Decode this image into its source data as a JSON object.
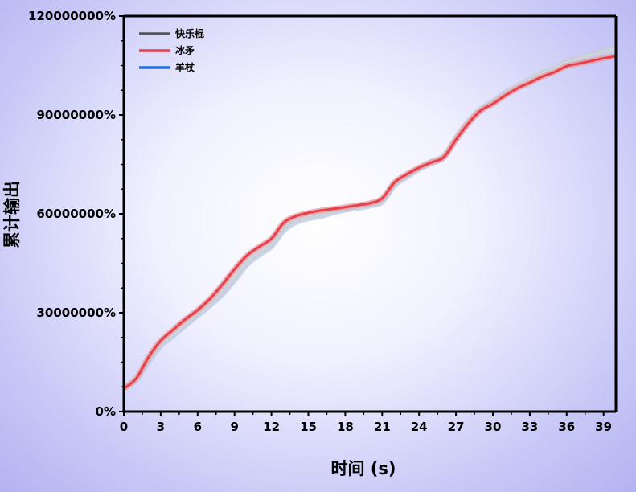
{
  "chart_data": {
    "type": "line",
    "title": "",
    "xlabel": "时间 (s)",
    "ylabel": "累计输出",
    "xlim": [
      0,
      40
    ],
    "ylim": [
      0,
      120000000
    ],
    "xticks": [
      0,
      3,
      6,
      9,
      12,
      15,
      18,
      21,
      24,
      27,
      30,
      33,
      36,
      39
    ],
    "yticks": [
      0,
      30000000,
      60000000,
      90000000,
      120000000
    ],
    "ytick_labels": [
      "0%",
      "30000000%",
      "60000000%",
      "90000000%",
      "120000000%"
    ],
    "legend_position": "top-left",
    "series": [
      {
        "name": "快乐棍",
        "color": "#555555",
        "x": [
          0,
          1,
          2,
          3,
          4,
          5,
          6,
          7,
          8,
          9,
          10,
          11,
          12,
          13,
          14,
          15,
          16,
          17,
          18,
          19,
          20,
          21,
          22,
          23,
          24,
          25,
          26,
          27,
          28,
          29,
          30,
          31,
          32,
          33,
          34,
          35,
          36,
          37,
          38,
          39,
          40
        ],
        "y": [
          7200000,
          9800000,
          15800000,
          20600000,
          23500000,
          26700000,
          29800000,
          33000000,
          36500000,
          41000000,
          45500000,
          48500000,
          51000000,
          56000000,
          58200000,
          59200000,
          60000000,
          61000000,
          61700000,
          62300000,
          63000000,
          64200000,
          69200000,
          71600000,
          74000000,
          75800000,
          77500000,
          83000000,
          88000000,
          91800000,
          94100000,
          96700000,
          98800000,
          100800000,
          102700000,
          104000000,
          106200000,
          107300000,
          108200000,
          109300000,
          110100000
        ]
      },
      {
        "name": "冰矛",
        "color": "#e8404a",
        "x": [
          0,
          1,
          2,
          3,
          4,
          5,
          6,
          7,
          8,
          9,
          10,
          11,
          12,
          13,
          14,
          15,
          16,
          17,
          18,
          19,
          20,
          21,
          22,
          23,
          24,
          25,
          26,
          27,
          28,
          29,
          30,
          31,
          32,
          33,
          34,
          35,
          36,
          37,
          38,
          39,
          40
        ],
        "y": [
          7000000,
          10000000,
          16500000,
          21500000,
          24800000,
          28000000,
          30800000,
          34200000,
          38500000,
          43200000,
          47300000,
          50000000,
          52500000,
          57300000,
          59300000,
          60300000,
          61000000,
          61500000,
          62000000,
          62600000,
          63200000,
          64700000,
          69500000,
          72000000,
          74000000,
          75600000,
          77200000,
          82500000,
          87400000,
          91300000,
          93400000,
          95900000,
          98100000,
          99800000,
          101600000,
          103000000,
          104800000,
          105600000,
          106400000,
          107200000,
          107800000
        ]
      },
      {
        "name": "羊杖",
        "color": "#1c6fe0",
        "x": [
          0,
          1,
          2,
          3,
          4,
          5,
          6,
          7,
          8,
          9,
          10,
          11,
          12,
          13,
          14,
          15,
          16,
          17,
          18,
          19,
          20,
          21,
          22,
          23,
          24,
          25,
          26,
          27,
          28,
          29,
          30,
          31,
          32,
          33,
          34,
          35,
          36,
          37,
          38,
          39,
          40
        ],
        "y": [
          7100000,
          9600000,
          15200000,
          20000000,
          23000000,
          26200000,
          29200000,
          32200000,
          35600000,
          40000000,
          44600000,
          47600000,
          50200000,
          55000000,
          57500000,
          58600000,
          59300000,
          60400000,
          61200000,
          61800000,
          62500000,
          63700000,
          68700000,
          71200000,
          73600000,
          75400000,
          77100000,
          82400000,
          87400000,
          91200000,
          93700000,
          96200000,
          98400000,
          100300000,
          102200000,
          103600000,
          105800000,
          106800000,
          107700000,
          108800000,
          109600000
        ]
      }
    ]
  }
}
